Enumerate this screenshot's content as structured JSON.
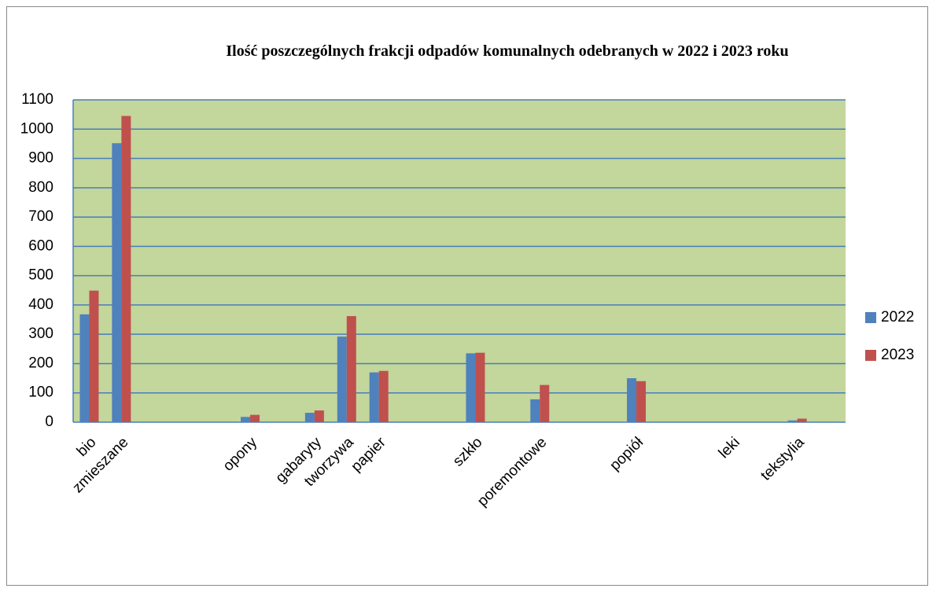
{
  "chart_data": {
    "type": "bar",
    "title": "Ilość poszczególnych frakcji odpadów komunalnych odebranych w 2022 i 2023 roku",
    "categories": [
      "bio",
      "zmieszane",
      null,
      null,
      null,
      "opony",
      null,
      "gabaryty",
      "tworzywa",
      "papier",
      null,
      null,
      "szkło",
      null,
      "poremontowe",
      null,
      null,
      "popiół",
      null,
      null,
      "leki",
      null,
      "tekstylia",
      null
    ],
    "series": [
      {
        "name": "2022",
        "color": "#4f81bd",
        "values": [
          368,
          952,
          null,
          null,
          null,
          18,
          null,
          32,
          292,
          170,
          null,
          null,
          235,
          null,
          78,
          null,
          null,
          150,
          null,
          null,
          0,
          null,
          6,
          null
        ]
      },
      {
        "name": "2023",
        "color": "#c0504d",
        "values": [
          449,
          1045,
          null,
          null,
          null,
          25,
          null,
          40,
          362,
          175,
          null,
          null,
          237,
          null,
          127,
          null,
          null,
          140,
          null,
          null,
          0,
          null,
          12,
          null
        ]
      }
    ],
    "ylim": [
      0,
      1100
    ],
    "yticks": [
      0,
      100,
      200,
      300,
      400,
      500,
      600,
      700,
      800,
      900,
      1000,
      1100
    ],
    "grid": true,
    "legend": "right"
  }
}
